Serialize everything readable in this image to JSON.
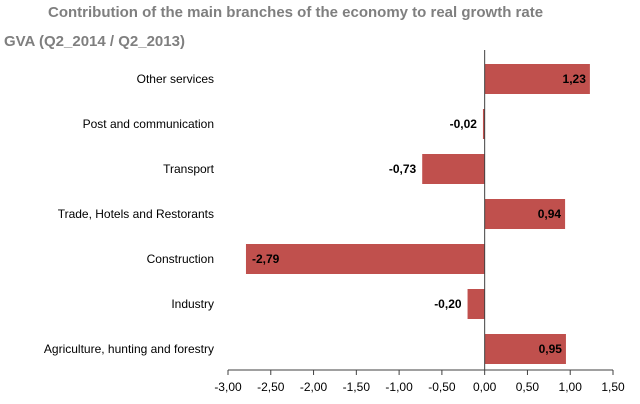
{
  "chart_data": {
    "type": "bar",
    "orientation": "horizontal",
    "title": "Contribution of the main branches of the economy to real growth rate",
    "subtitle": "GVA (Q2_2014 / Q2_2013)",
    "categories": [
      "Other services",
      "Post and communication",
      "Transport",
      "Trade, Hotels and Restorants",
      "Construction",
      "Industry",
      "Agriculture, hunting and forestry"
    ],
    "values": [
      1.23,
      -0.02,
      -0.73,
      0.94,
      -2.79,
      -0.2,
      0.95
    ],
    "value_labels": [
      "1,23",
      "-0,02",
      "-0,73",
      "0,94",
      "-2,79",
      "-0,20",
      "0,95"
    ],
    "xlim": [
      -3.0,
      1.5
    ],
    "xticks": [
      -3.0,
      -2.5,
      -2.0,
      -1.5,
      -1.0,
      -0.5,
      0.0,
      0.5,
      1.0,
      1.5
    ],
    "xtick_labels": [
      "-3,00",
      "-2,50",
      "-2,00",
      "-1,50",
      "-1,00",
      "-0,50",
      "0,00",
      "0,50",
      "1,00",
      "1,50"
    ],
    "bar_color": "#c0504d",
    "grid": false,
    "legend": "none"
  }
}
